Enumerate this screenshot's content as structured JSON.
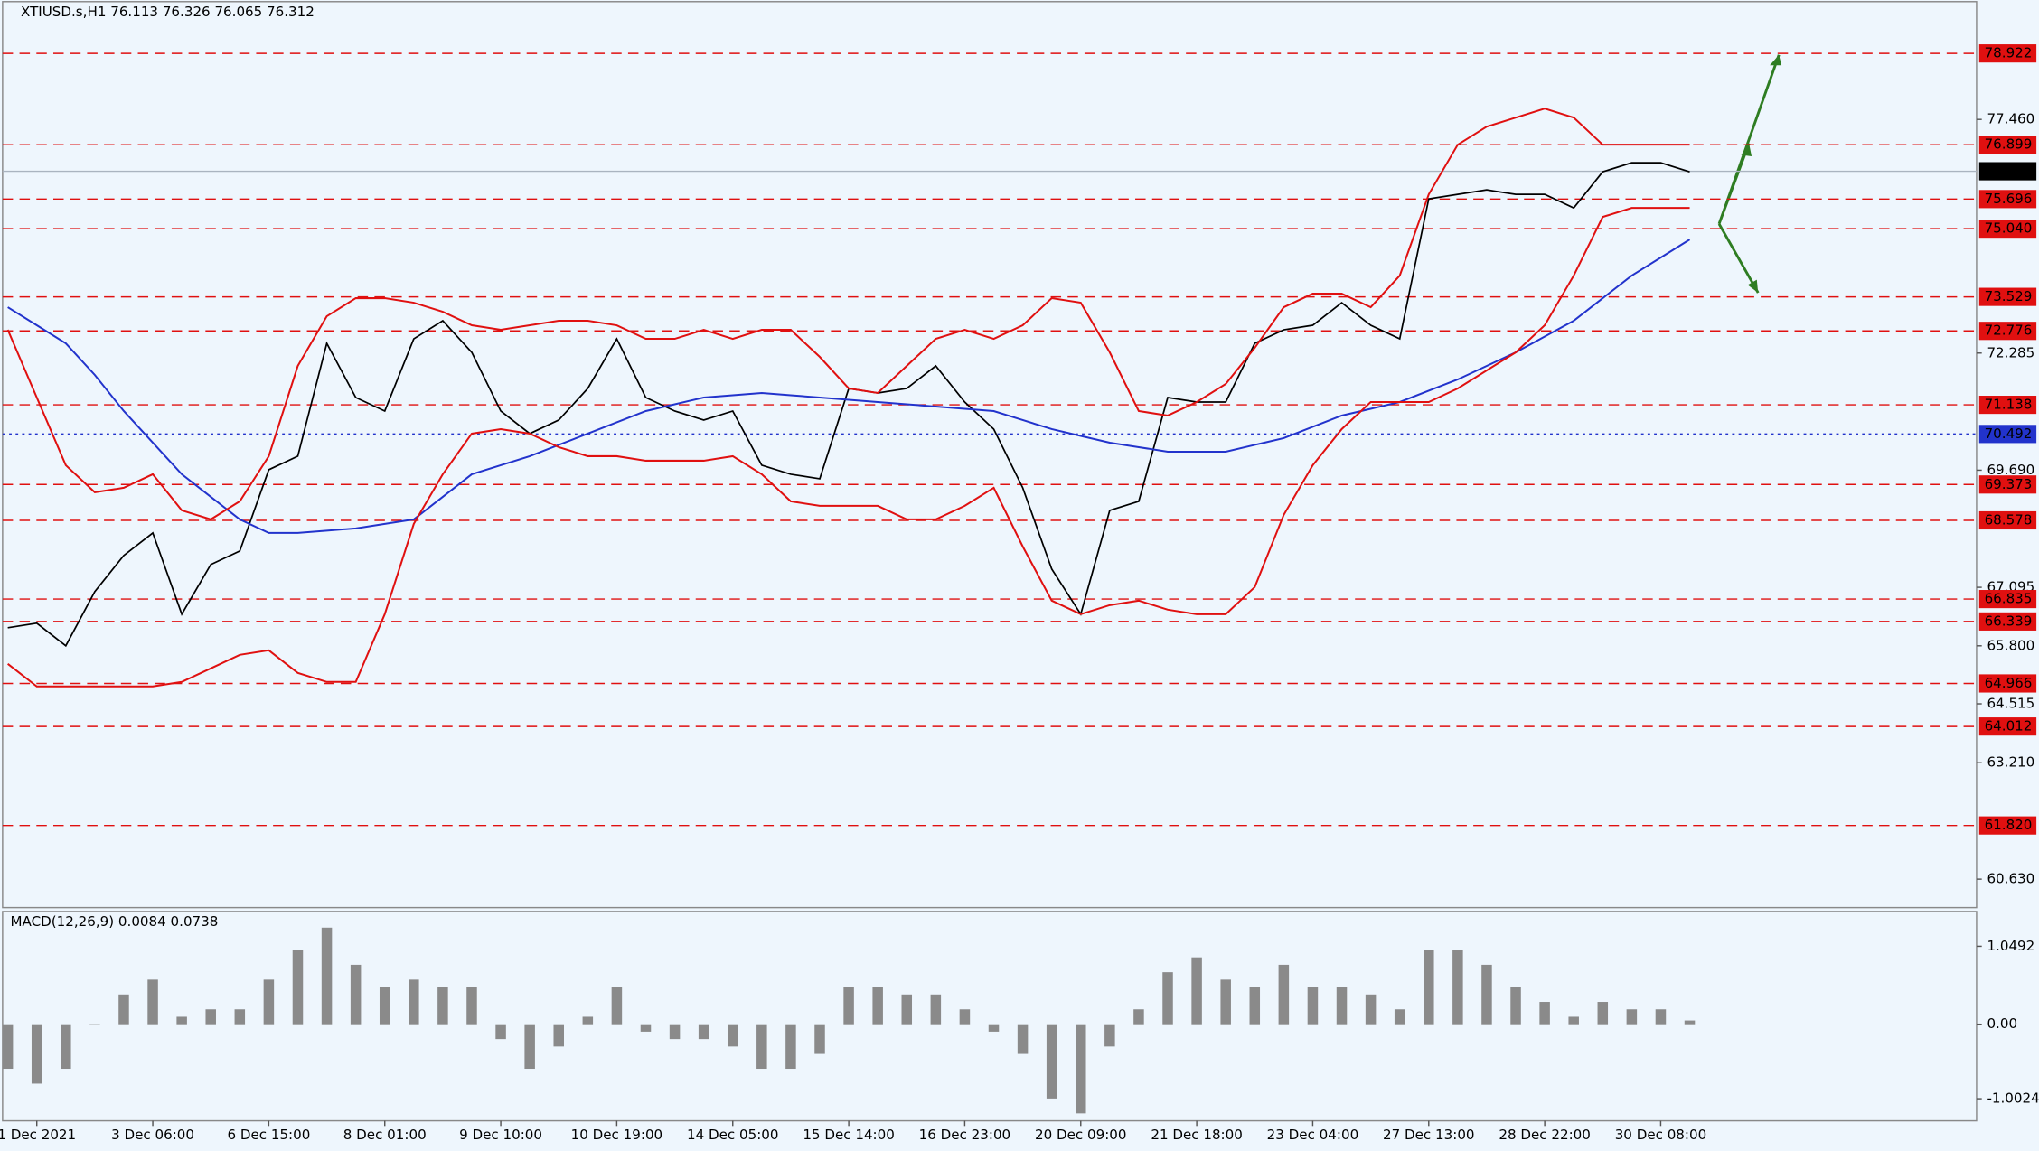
{
  "chart_data": [
    {
      "type": "line",
      "title": "XTIUSD.s,H1 76.113 76.326 76.065 76.312",
      "categories": [
        null,
        "1 Dec 2021",
        null,
        null,
        null,
        "3 Dec 06:00",
        null,
        null,
        null,
        "6 Dec 15:00",
        null,
        null,
        null,
        "8 Dec 01:00",
        null,
        null,
        null,
        "9 Dec 10:00",
        null,
        null,
        null,
        "10 Dec 19:00",
        null,
        null,
        null,
        "14 Dec 05:00",
        null,
        null,
        null,
        "15 Dec 14:00",
        null,
        null,
        null,
        "16 Dec 23:00",
        null,
        null,
        null,
        "20 Dec 09:00",
        null,
        null,
        null,
        "21 Dec 18:00",
        null,
        null,
        null,
        "23 Dec 04:00",
        null,
        null,
        null,
        "27 Dec 13:00",
        null,
        null,
        null,
        "28 Dec 22:00",
        null,
        null,
        null,
        "30 Dec 08:00",
        null
      ],
      "series": [
        {
          "color": "#000000",
          "values": [
            66.2,
            66.3,
            65.8,
            67.0,
            67.8,
            68.3,
            66.5,
            67.6,
            67.9,
            69.7,
            70.0,
            72.5,
            71.3,
            71.0,
            72.6,
            73.0,
            72.3,
            71.0,
            70.5,
            70.8,
            71.5,
            72.6,
            71.3,
            71.0,
            70.8,
            71.0,
            69.8,
            69.6,
            69.5,
            71.5,
            71.4,
            71.5,
            72.0,
            71.2,
            70.6,
            69.3,
            67.5,
            66.5,
            68.8,
            69.0,
            71.3,
            71.2,
            71.2,
            72.5,
            72.8,
            72.9,
            73.4,
            72.9,
            72.6,
            75.7,
            75.8,
            75.9,
            75.8,
            75.8,
            75.5,
            76.3,
            76.5,
            76.5,
            76.3
          ]
        },
        {
          "color": "#2233cc",
          "values": [
            73.3,
            72.9,
            72.5,
            71.8,
            71.0,
            70.3,
            69.6,
            69.1,
            68.6,
            68.3,
            68.3,
            68.35,
            68.4,
            68.5,
            68.6,
            69.1,
            69.6,
            69.8,
            70.0,
            70.25,
            70.5,
            70.75,
            71.0,
            71.15,
            71.3,
            71.35,
            71.4,
            71.35,
            71.3,
            71.25,
            71.2,
            71.15,
            71.1,
            71.05,
            71.0,
            70.8,
            70.6,
            70.45,
            70.3,
            70.2,
            70.1,
            70.1,
            70.1,
            70.25,
            70.4,
            70.65,
            70.9,
            71.05,
            71.2,
            71.45,
            71.7,
            72.0,
            72.3,
            72.65,
            73.0,
            73.5,
            74.0,
            74.4,
            74.8
          ]
        },
        {
          "color": "#e01010",
          "values": [
            72.8,
            71.3,
            69.8,
            69.2,
            69.3,
            69.6,
            68.8,
            68.6,
            69.0,
            70.0,
            72.0,
            73.1,
            73.5,
            73.5,
            73.4,
            73.2,
            72.9,
            72.8,
            72.9,
            73.0,
            73.0,
            72.9,
            72.6,
            72.6,
            72.8,
            72.6,
            72.8,
            72.8,
            72.2,
            71.5,
            71.4,
            72.0,
            72.6,
            72.8,
            72.6,
            72.9,
            73.5,
            73.4,
            72.3,
            71.0,
            70.9,
            71.2,
            71.6,
            72.4,
            73.3,
            73.6,
            73.6,
            73.3,
            74.0,
            75.8,
            76.9,
            77.3,
            77.5,
            77.7,
            77.5,
            76.9,
            76.9,
            76.9,
            76.9
          ]
        },
        {
          "color": "#e01010",
          "values": [
            65.4,
            64.9,
            64.9,
            64.9,
            64.9,
            64.9,
            65.0,
            65.3,
            65.6,
            65.7,
            65.2,
            65.0,
            65.0,
            66.5,
            68.5,
            69.6,
            70.5,
            70.6,
            70.5,
            70.2,
            70.0,
            70.0,
            69.9,
            69.9,
            69.9,
            70.0,
            69.6,
            69.0,
            68.9,
            68.9,
            68.9,
            68.6,
            68.6,
            68.9,
            69.3,
            68.0,
            66.8,
            66.5,
            66.7,
            66.8,
            66.6,
            66.5,
            66.5,
            67.1,
            68.7,
            69.8,
            70.6,
            71.2,
            71.2,
            71.2,
            71.5,
            71.9,
            72.3,
            72.9,
            74.0,
            75.3,
            75.5,
            75.5,
            75.5
          ]
        }
      ],
      "ylim": [
        60.0,
        80.07
      ],
      "yticks": [
        {
          "value": 77.46,
          "label": "77.460"
        },
        72.285,
        {
          "value": 69.69,
          "label": "69.690"
        },
        67.095,
        {
          "value": 65.8,
          "label": "65.800"
        },
        64.515,
        {
          "value": 63.21,
          "label": "63.210"
        },
        {
          "value": 60.63,
          "label": "60.630"
        }
      ],
      "levels": [
        78.922,
        76.899,
        75.696,
        {
          "value": 75.04,
          "label": "75.040"
        },
        73.529,
        72.776,
        71.138,
        69.373,
        68.578,
        66.835,
        66.339,
        64.966,
        64.012,
        {
          "value": 61.82,
          "label": "61.820"
        }
      ],
      "level_color": "#e01010",
      "blue_level": 70.492,
      "current_price": 76.312
    },
    {
      "type": "histogram",
      "title": "MACD(12,26,9) 0.0084 0.0738",
      "color": "#8a8a8a",
      "values": [
        -0.6,
        -0.8,
        -0.6,
        0.0,
        0.4,
        0.6,
        0.1,
        0.2,
        0.2,
        0.6,
        1.0,
        1.3,
        0.8,
        0.5,
        0.6,
        0.5,
        0.5,
        -0.2,
        -0.6,
        -0.3,
        0.1,
        0.5,
        -0.1,
        -0.2,
        -0.2,
        -0.3,
        -0.6,
        -0.6,
        -0.4,
        0.5,
        0.5,
        0.4,
        0.4,
        0.2,
        -0.1,
        -0.4,
        -1.0,
        -1.2,
        -0.3,
        0.2,
        0.7,
        0.9,
        0.6,
        0.5,
        0.8,
        0.5,
        0.5,
        0.4,
        0.2,
        1.0,
        1.0,
        0.8,
        0.5,
        0.3,
        0.1,
        0.3,
        0.2,
        0.2,
        0.05
      ],
      "ylim": [
        -1.3,
        1.5
      ],
      "yticks": [
        1.0492,
        {
          "value": 0,
          "label": "0.00"
        },
        -1.0024
      ]
    }
  ]
}
